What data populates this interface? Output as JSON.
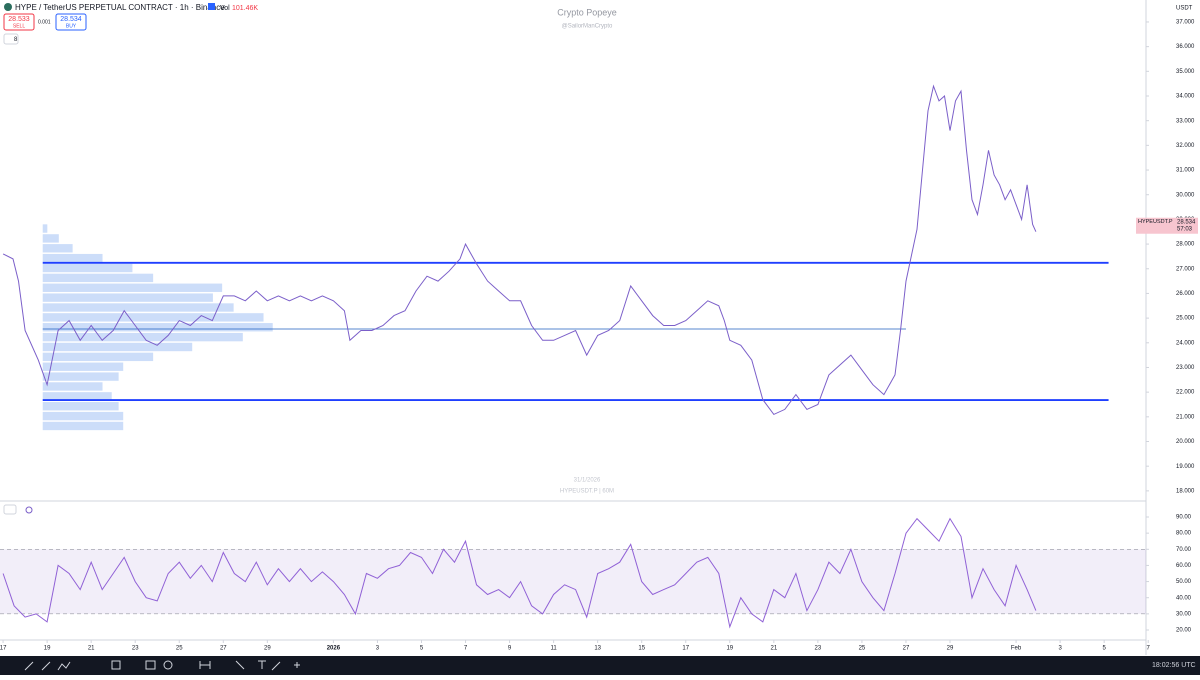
{
  "header": {
    "symbol": "HYPE / TetherUS PERPETUAL CONTRACT · 1h · Binance",
    "vol_label": "Vol",
    "vol_value": "101.46K",
    "sell_price": "28.533",
    "sell": "SELL",
    "spread": "0.001",
    "buy_price": "28.534",
    "buy": "BUY",
    "indicator_count": "8"
  },
  "watermark": {
    "title": "Crypto Popeye",
    "handle": "@SailorManCrypto",
    "date": "31/1/2026",
    "symbol": "HYPEUSDT.P | 60M"
  },
  "currency": "USDT",
  "price_tag": {
    "symbol": "HYPEUSDT.P",
    "price": "28.534",
    "countdown": "57:03"
  },
  "clock": "18:02:56 UTC",
  "chart_data": [
    {
      "type": "line",
      "color": "#7b5fc9",
      "xlim": [
        -0.14,
        51.9
      ],
      "ylim": [
        17.63,
        37.89
      ],
      "xticks": [
        {
          "value": 0,
          "label": "17"
        },
        {
          "value": 2,
          "label": "19"
        },
        {
          "value": 4,
          "label": "21"
        },
        {
          "value": 6,
          "label": "23"
        },
        {
          "value": 8,
          "label": "25"
        },
        {
          "value": 10,
          "label": "27"
        },
        {
          "value": 12,
          "label": "29"
        },
        {
          "value": 15,
          "label": "2026"
        },
        {
          "value": 17,
          "label": "3"
        },
        {
          "value": 19,
          "label": "5"
        },
        {
          "value": 21,
          "label": "7"
        },
        {
          "value": 23,
          "label": "9"
        },
        {
          "value": 25,
          "label": "11"
        },
        {
          "value": 27,
          "label": "13"
        },
        {
          "value": 29,
          "label": "15"
        },
        {
          "value": 31,
          "label": "17"
        },
        {
          "value": 33,
          "label": "19"
        },
        {
          "value": 35,
          "label": "21"
        },
        {
          "value": 37,
          "label": "23"
        },
        {
          "value": 39,
          "label": "25"
        },
        {
          "value": 41,
          "label": "27"
        },
        {
          "value": 43,
          "label": "29"
        },
        {
          "value": 46,
          "label": "Feb"
        },
        {
          "value": 48,
          "label": "3"
        },
        {
          "value": 50,
          "label": "5"
        },
        {
          "value": 52,
          "label": "7"
        }
      ],
      "yticks": [
        {
          "value": 18,
          "label": "18.000"
        },
        {
          "value": 19,
          "label": "19.000"
        },
        {
          "value": 20,
          "label": "20.000"
        },
        {
          "value": 21,
          "label": "21.000"
        },
        {
          "value": 22,
          "label": "22.000"
        },
        {
          "value": 23,
          "label": "23.000"
        },
        {
          "value": 24,
          "label": "24.000"
        },
        {
          "value": 25,
          "label": "25.000"
        },
        {
          "value": 26,
          "label": "26.000"
        },
        {
          "value": 27,
          "label": "27.000"
        },
        {
          "value": 28,
          "label": "28.000"
        },
        {
          "value": 29,
          "label": "29.000"
        },
        {
          "value": 30,
          "label": "30.000"
        },
        {
          "value": 31,
          "label": "31.000"
        },
        {
          "value": 32,
          "label": "32.000"
        },
        {
          "value": 33,
          "label": "33.000"
        },
        {
          "value": 34,
          "label": "34.000"
        },
        {
          "value": 35,
          "label": "35.000"
        },
        {
          "value": 36,
          "label": "36.000"
        },
        {
          "value": 37,
          "label": "37.000"
        }
      ],
      "x": [
        0,
        0.45,
        0.7,
        1,
        1.6,
        2,
        2.5,
        3,
        3.5,
        4,
        4.5,
        5,
        5.5,
        6,
        6.5,
        7,
        7.5,
        8,
        8.5,
        9,
        9.5,
        10,
        10.5,
        11,
        11.5,
        12,
        12.5,
        13,
        13.5,
        14,
        14.5,
        15,
        15.5,
        15.75,
        16.25,
        16.75,
        17.25,
        17.75,
        18.25,
        18.75,
        19.25,
        19.75,
        20.25,
        20.75,
        21,
        21.5,
        22,
        22.5,
        23,
        23.5,
        24,
        24.5,
        25,
        25.5,
        26,
        26.5,
        27,
        27.5,
        28,
        28.5,
        29,
        29.5,
        30,
        30.5,
        31,
        31.5,
        32,
        32.5,
        32.75,
        33,
        33.5,
        34,
        34.5,
        35,
        35.5,
        36,
        36.5,
        37,
        37.5,
        38,
        38.5,
        39,
        39.5,
        40,
        40.5,
        40.75,
        41,
        41.5,
        41.75,
        42,
        42.25,
        42.5,
        42.75,
        43,
        43.25,
        43.5,
        43.75,
        44,
        44.25,
        44.5,
        44.75,
        45,
        45.25,
        45.5,
        45.75,
        46.25,
        46.5,
        46.75,
        46.9
      ],
      "values": [
        27.6,
        27.4,
        26.5,
        24.5,
        23.3,
        22.3,
        24.5,
        24.9,
        24.1,
        24.7,
        24.1,
        24.5,
        25.3,
        24.7,
        24.1,
        23.9,
        24.3,
        24.9,
        24.7,
        25.1,
        24.9,
        25.9,
        25.9,
        25.7,
        26.1,
        25.7,
        25.9,
        25.7,
        25.9,
        25.7,
        25.9,
        25.7,
        25.3,
        24.1,
        24.5,
        24.5,
        24.7,
        25.1,
        25.3,
        26.1,
        26.7,
        26.5,
        26.9,
        27.4,
        28.0,
        27.2,
        26.5,
        26.1,
        25.7,
        25.7,
        24.7,
        24.1,
        24.1,
        24.3,
        24.5,
        23.5,
        24.3,
        24.5,
        24.9,
        26.3,
        25.7,
        25.1,
        24.7,
        24.7,
        24.9,
        25.3,
        25.7,
        25.5,
        24.9,
        24.1,
        23.9,
        23.3,
        21.7,
        21.1,
        21.3,
        21.9,
        21.3,
        21.5,
        22.7,
        23.1,
        23.5,
        22.9,
        22.3,
        21.9,
        22.7,
        24.5,
        26.5,
        28.6,
        31.0,
        33.4,
        34.4,
        33.8,
        34.0,
        32.6,
        33.8,
        34.2,
        31.8,
        29.8,
        29.2,
        30.4,
        31.8,
        30.8,
        30.4,
        29.8,
        30.2,
        29.0,
        30.4,
        28.8,
        28.5
      ],
      "levels": [
        {
          "value": 27.24,
          "x": [
            1.8,
            50.2
          ],
          "color": "#1f3fff",
          "thick": true
        },
        {
          "value": 24.56,
          "x": [
            1.8,
            41
          ],
          "color": "#1f5fbf",
          "thick": false
        },
        {
          "value": 21.68,
          "x": [
            1.8,
            50.2
          ],
          "color": "#1f3fff",
          "thick": true
        }
      ],
      "profile": {
        "x0": 1.8,
        "color": "#8fb3f2",
        "prices": [
          20.6,
          21.0,
          21.4,
          21.8,
          22.2,
          22.6,
          23.0,
          23.4,
          23.8,
          24.2,
          24.6,
          25.0,
          25.4,
          25.8,
          26.2,
          26.6,
          27.0,
          27.4,
          27.8,
          28.2,
          28.6
        ],
        "values": [
          35,
          35,
          33,
          30,
          26,
          33,
          35,
          48,
          65,
          87,
          100,
          96,
          83,
          74,
          78,
          48,
          39,
          26,
          13,
          7,
          2
        ]
      }
    },
    {
      "type": "line",
      "color": "#9061d6",
      "xlim": [
        -0.14,
        51.9
      ],
      "ylim": [
        13.8,
        99.3
      ],
      "yticks": [
        {
          "value": 20,
          "label": "20.00"
        },
        {
          "value": 30,
          "label": "30.00"
        },
        {
          "value": 40,
          "label": "40.00"
        },
        {
          "value": 50,
          "label": "50.00"
        },
        {
          "value": 60,
          "label": "60.00"
        },
        {
          "value": 70,
          "label": "70.00"
        },
        {
          "value": 80,
          "label": "80.00"
        },
        {
          "value": 90,
          "label": "90.00"
        }
      ],
      "band": [
        30,
        70
      ],
      "x": [
        0,
        0.5,
        1,
        1.5,
        2,
        2.5,
        3,
        3.5,
        4,
        4.5,
        5,
        5.5,
        6,
        6.5,
        7,
        7.5,
        8,
        8.5,
        9,
        9.5,
        10,
        10.5,
        11,
        11.5,
        12,
        12.5,
        13,
        13.5,
        14,
        14.5,
        15,
        15.5,
        16,
        16.5,
        17,
        17.5,
        18,
        18.5,
        19,
        19.5,
        20,
        20.5,
        21,
        21.5,
        22,
        22.5,
        23,
        23.5,
        24,
        24.5,
        25,
        25.5,
        26,
        26.5,
        27,
        27.5,
        28,
        28.5,
        29,
        29.5,
        30,
        30.5,
        31,
        31.5,
        32,
        32.5,
        33,
        33.5,
        34,
        34.5,
        35,
        35.5,
        36,
        36.5,
        37,
        37.5,
        38,
        38.5,
        39,
        39.5,
        40,
        40.5,
        41,
        41.5,
        42,
        42.5,
        43,
        43.5,
        44,
        44.5,
        45,
        45.5,
        46,
        46.5,
        46.9
      ],
      "values": [
        55,
        35,
        28,
        30,
        25,
        60,
        55,
        45,
        62,
        45,
        55,
        65,
        50,
        40,
        38,
        55,
        62,
        52,
        60,
        50,
        68,
        55,
        50,
        62,
        48,
        58,
        50,
        58,
        50,
        56,
        50,
        42,
        30,
        55,
        52,
        58,
        60,
        68,
        65,
        55,
        70,
        62,
        75,
        48,
        42,
        45,
        40,
        50,
        35,
        30,
        42,
        48,
        45,
        28,
        55,
        58,
        62,
        73,
        50,
        42,
        45,
        48,
        55,
        62,
        65,
        55,
        22,
        40,
        30,
        25,
        45,
        40,
        55,
        32,
        45,
        62,
        55,
        70,
        50,
        40,
        32,
        55,
        80,
        89,
        82,
        75,
        89,
        78,
        40,
        58,
        45,
        35,
        60,
        45,
        32
      ]
    }
  ]
}
